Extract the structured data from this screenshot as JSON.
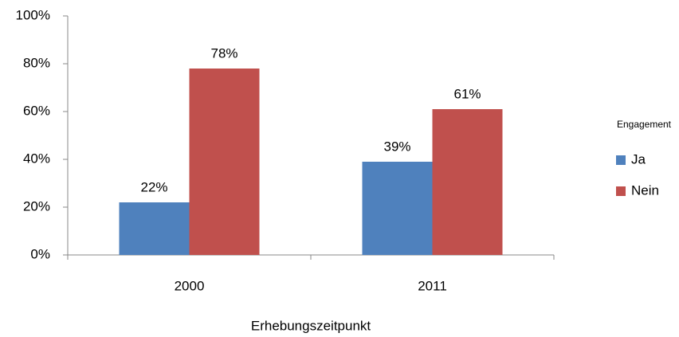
{
  "chart_data": {
    "type": "bar",
    "categories": [
      "2000",
      "2011"
    ],
    "series": [
      {
        "name": "Ja",
        "color": "#4f81bd",
        "values": [
          22,
          39
        ],
        "value_labels": [
          "22%",
          "39%"
        ]
      },
      {
        "name": "Nein",
        "color": "#c0504d",
        "values": [
          78,
          61
        ],
        "value_labels": [
          "78%",
          "61%"
        ]
      }
    ],
    "ylim": [
      0,
      100
    ],
    "yticks": [
      {
        "value": 0,
        "label": "0%"
      },
      {
        "value": 20,
        "label": "20%"
      },
      {
        "value": 40,
        "label": "40%"
      },
      {
        "value": 60,
        "label": "60%"
      },
      {
        "value": 80,
        "label": "80%"
      },
      {
        "value": 100,
        "label": "100%"
      }
    ],
    "xlabel": "Erhebungszeitpunkt",
    "legend_title": "Engagement",
    "legend": "right",
    "grid": false
  }
}
